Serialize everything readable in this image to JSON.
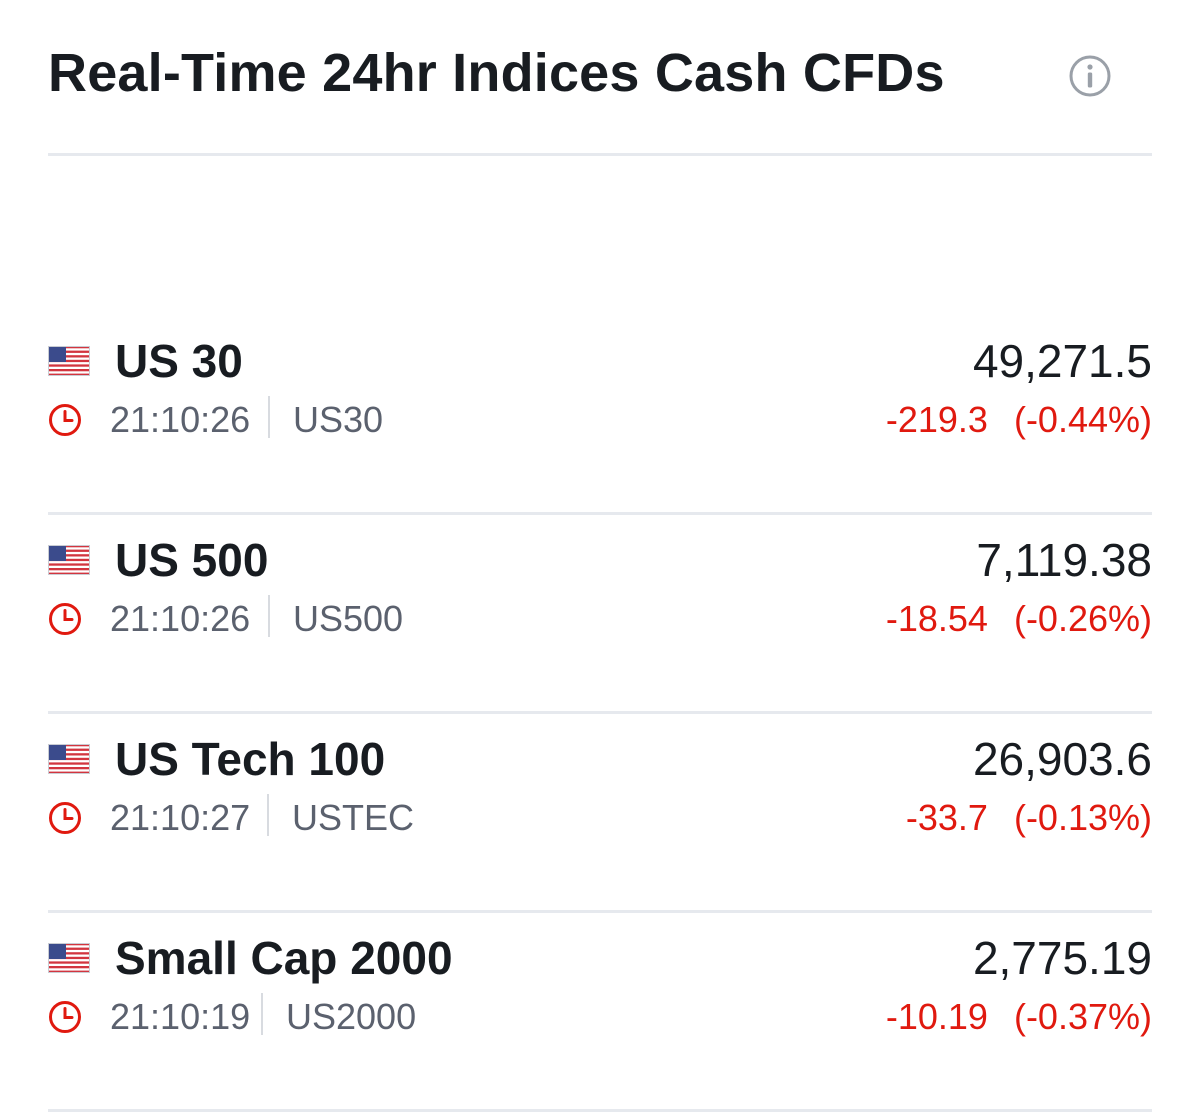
{
  "header": {
    "title": "Real-Time 24hr Indices Cash CFDs",
    "info_icon": "info-circle-icon"
  },
  "colors": {
    "negative": "#e0190f",
    "muted_text": "#5b616e",
    "divider": "#e6e9ee",
    "clock": "#e0190f"
  },
  "rows": [
    {
      "flag": "us-flag-icon",
      "name": "US 30",
      "price": "49,271.5",
      "time": "21:10:26",
      "symbol": "US30",
      "change": "-219.3",
      "change_pct": "(-0.44%)"
    },
    {
      "flag": "us-flag-icon",
      "name": "US 500",
      "price": "7,119.38",
      "time": "21:10:26",
      "symbol": "US500",
      "change": "-18.54",
      "change_pct": "(-0.26%)"
    },
    {
      "flag": "us-flag-icon",
      "name": "US Tech 100",
      "price": "26,903.6",
      "time": "21:10:27",
      "symbol": "USTEC",
      "change": "-33.7",
      "change_pct": "(-0.13%)"
    },
    {
      "flag": "us-flag-icon",
      "name": "Small Cap 2000",
      "price": "2,775.19",
      "time": "21:10:19",
      "symbol": "US2000",
      "change": "-10.19",
      "change_pct": "(-0.37%)"
    }
  ]
}
